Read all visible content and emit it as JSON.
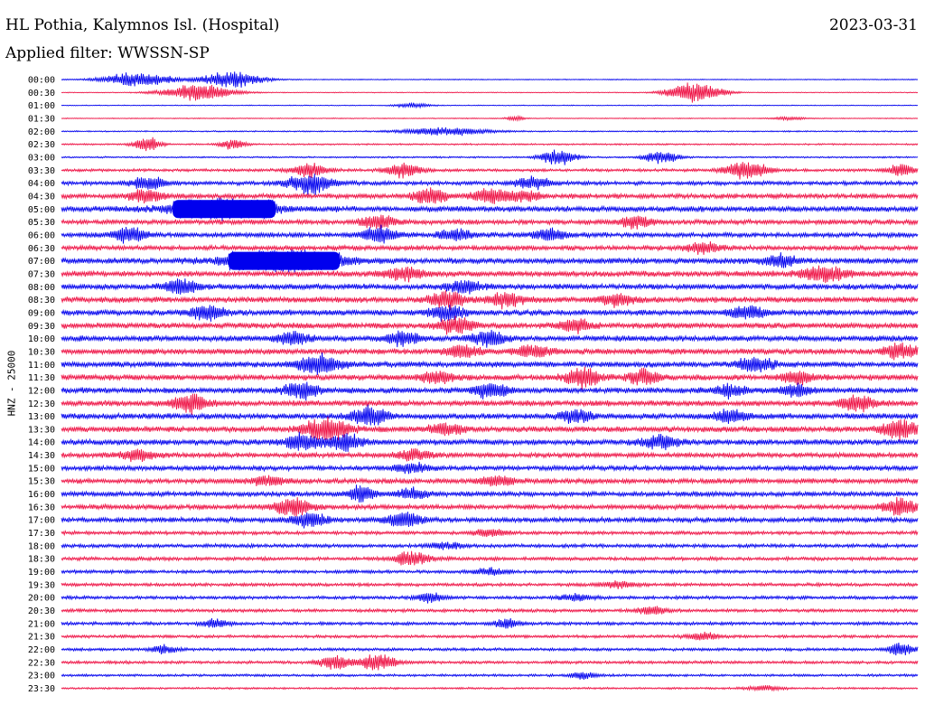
{
  "header": {
    "station": "HL Pothia, Kalymnos Isl. (Hospital)",
    "date": "2023-03-31",
    "filter": "Applied filter: WWSSN-SP"
  },
  "chart_data": {
    "type": "line",
    "title": "HL Pothia, Kalymnos Isl. (Hospital)",
    "subtitle": "Applied filter: WWSSN-SP",
    "ylabel": "HNZ - 25000",
    "xlabel": "",
    "colors": [
      "#0000ee",
      "#ee1144"
    ],
    "grid": false,
    "legend": "none",
    "rows": [
      {
        "label": "00:00",
        "level": 0.5,
        "events": [
          {
            "t": 0.09,
            "a": 9,
            "w": 0.04
          },
          {
            "t": 0.2,
            "a": 10,
            "w": 0.035
          }
        ]
      },
      {
        "label": "00:30",
        "level": 0.5,
        "events": [
          {
            "t": 0.16,
            "a": 10,
            "w": 0.04
          },
          {
            "t": 0.74,
            "a": 14,
            "w": 0.03
          }
        ]
      },
      {
        "label": "01:00",
        "level": 0.5,
        "events": [
          {
            "t": 0.41,
            "a": 3,
            "w": 0.02
          }
        ]
      },
      {
        "label": "01:30",
        "level": 0.5,
        "events": [
          {
            "t": 0.53,
            "a": 3,
            "w": 0.01
          },
          {
            "t": 0.85,
            "a": 2,
            "w": 0.02
          }
        ]
      },
      {
        "label": "02:00",
        "level": 0.8,
        "events": [
          {
            "t": 0.45,
            "a": 5,
            "w": 0.05
          }
        ]
      },
      {
        "label": "02:30",
        "level": 1,
        "events": [
          {
            "t": 0.1,
            "a": 10,
            "w": 0.015
          },
          {
            "t": 0.2,
            "a": 6,
            "w": 0.015
          }
        ]
      },
      {
        "label": "03:00",
        "level": 1,
        "events": [
          {
            "t": 0.58,
            "a": 10,
            "w": 0.02
          },
          {
            "t": 0.7,
            "a": 8,
            "w": 0.02
          }
        ]
      },
      {
        "label": "03:30",
        "level": 1.8,
        "events": [
          {
            "t": 0.29,
            "a": 9,
            "w": 0.02
          },
          {
            "t": 0.4,
            "a": 9,
            "w": 0.02
          },
          {
            "t": 0.8,
            "a": 10,
            "w": 0.025
          },
          {
            "t": 0.98,
            "a": 7,
            "w": 0.015
          }
        ]
      },
      {
        "label": "04:00",
        "level": 2.5,
        "events": [
          {
            "t": 0.1,
            "a": 8,
            "w": 0.02
          },
          {
            "t": 0.29,
            "a": 12,
            "w": 0.025
          },
          {
            "t": 0.55,
            "a": 8,
            "w": 0.02
          }
        ]
      },
      {
        "label": "04:30",
        "level": 3,
        "events": [
          {
            "t": 0.1,
            "a": 8,
            "w": 0.02
          },
          {
            "t": 0.43,
            "a": 9,
            "w": 0.02
          },
          {
            "t": 0.5,
            "a": 8,
            "w": 0.02
          },
          {
            "t": 0.54,
            "a": 7,
            "w": 0.02
          }
        ]
      },
      {
        "label": "05:00",
        "level": 3.5,
        "events": [
          {
            "t": 0.19,
            "a": 11,
            "w": 0.06,
            "sat": 1
          }
        ]
      },
      {
        "label": "05:30",
        "level": 3,
        "events": [
          {
            "t": 0.37,
            "a": 9,
            "w": 0.02
          },
          {
            "t": 0.67,
            "a": 7,
            "w": 0.02
          }
        ]
      },
      {
        "label": "06:00",
        "level": 3,
        "events": [
          {
            "t": 0.08,
            "a": 9,
            "w": 0.02
          },
          {
            "t": 0.37,
            "a": 10,
            "w": 0.02
          },
          {
            "t": 0.46,
            "a": 7,
            "w": 0.02
          },
          {
            "t": 0.57,
            "a": 7,
            "w": 0.02
          }
        ]
      },
      {
        "label": "06:30",
        "level": 3,
        "events": [
          {
            "t": 0.75,
            "a": 7,
            "w": 0.02
          }
        ]
      },
      {
        "label": "07:00",
        "level": 3.5,
        "events": [
          {
            "t": 0.26,
            "a": 12,
            "w": 0.065,
            "sat": 1
          },
          {
            "t": 0.84,
            "a": 8,
            "w": 0.02
          }
        ]
      },
      {
        "label": "07:30",
        "level": 3.5,
        "events": [
          {
            "t": 0.4,
            "a": 8,
            "w": 0.025
          },
          {
            "t": 0.89,
            "a": 10,
            "w": 0.025
          }
        ]
      },
      {
        "label": "08:00",
        "level": 3.5,
        "events": [
          {
            "t": 0.14,
            "a": 9,
            "w": 0.02
          },
          {
            "t": 0.47,
            "a": 8,
            "w": 0.02
          }
        ]
      },
      {
        "label": "08:30",
        "level": 3.5,
        "events": [
          {
            "t": 0.45,
            "a": 11,
            "w": 0.02
          },
          {
            "t": 0.52,
            "a": 9,
            "w": 0.02
          },
          {
            "t": 0.65,
            "a": 7,
            "w": 0.02
          }
        ]
      },
      {
        "label": "09:00",
        "level": 3.5,
        "events": [
          {
            "t": 0.17,
            "a": 9,
            "w": 0.02
          },
          {
            "t": 0.45,
            "a": 9,
            "w": 0.02
          },
          {
            "t": 0.8,
            "a": 8,
            "w": 0.02
          }
        ]
      },
      {
        "label": "09:30",
        "level": 3.5,
        "events": [
          {
            "t": 0.46,
            "a": 10,
            "w": 0.02
          },
          {
            "t": 0.6,
            "a": 7,
            "w": 0.02
          }
        ]
      },
      {
        "label": "10:00",
        "level": 3.5,
        "events": [
          {
            "t": 0.27,
            "a": 8,
            "w": 0.02
          },
          {
            "t": 0.4,
            "a": 8,
            "w": 0.02
          },
          {
            "t": 0.5,
            "a": 9,
            "w": 0.02
          }
        ]
      },
      {
        "label": "10:30",
        "level": 3.5,
        "events": [
          {
            "t": 0.47,
            "a": 8,
            "w": 0.02
          },
          {
            "t": 0.55,
            "a": 7,
            "w": 0.02
          },
          {
            "t": 0.98,
            "a": 9,
            "w": 0.02
          }
        ]
      },
      {
        "label": "11:00",
        "level": 3.5,
        "events": [
          {
            "t": 0.3,
            "a": 11,
            "w": 0.025
          },
          {
            "t": 0.81,
            "a": 9,
            "w": 0.02
          }
        ]
      },
      {
        "label": "11:30",
        "level": 3.5,
        "events": [
          {
            "t": 0.44,
            "a": 7,
            "w": 0.02
          },
          {
            "t": 0.61,
            "a": 12,
            "w": 0.02
          },
          {
            "t": 0.68,
            "a": 8,
            "w": 0.02
          },
          {
            "t": 0.86,
            "a": 8,
            "w": 0.02
          }
        ]
      },
      {
        "label": "12:00",
        "level": 3.5,
        "events": [
          {
            "t": 0.28,
            "a": 10,
            "w": 0.02
          },
          {
            "t": 0.5,
            "a": 9,
            "w": 0.02
          },
          {
            "t": 0.78,
            "a": 7,
            "w": 0.02
          },
          {
            "t": 0.86,
            "a": 7,
            "w": 0.02
          }
        ]
      },
      {
        "label": "12:30",
        "level": 3.5,
        "events": [
          {
            "t": 0.15,
            "a": 12,
            "w": 0.02
          },
          {
            "t": 0.93,
            "a": 10,
            "w": 0.02
          }
        ]
      },
      {
        "label": "13:00",
        "level": 3.5,
        "events": [
          {
            "t": 0.36,
            "a": 11,
            "w": 0.02
          },
          {
            "t": 0.6,
            "a": 7,
            "w": 0.02
          },
          {
            "t": 0.78,
            "a": 7,
            "w": 0.02
          }
        ]
      },
      {
        "label": "13:30",
        "level": 3.5,
        "events": [
          {
            "t": 0.3,
            "a": 9,
            "w": 0.02
          },
          {
            "t": 0.32,
            "a": 9,
            "w": 0.02
          },
          {
            "t": 0.45,
            "a": 7,
            "w": 0.02
          },
          {
            "t": 0.98,
            "a": 12,
            "w": 0.02
          }
        ]
      },
      {
        "label": "14:00",
        "level": 3.5,
        "events": [
          {
            "t": 0.28,
            "a": 10,
            "w": 0.02
          },
          {
            "t": 0.33,
            "a": 10,
            "w": 0.02
          },
          {
            "t": 0.7,
            "a": 8,
            "w": 0.02
          }
        ]
      },
      {
        "label": "14:30",
        "level": 3,
        "events": [
          {
            "t": 0.09,
            "a": 7,
            "w": 0.02
          },
          {
            "t": 0.41,
            "a": 7,
            "w": 0.02
          }
        ]
      },
      {
        "label": "15:00",
        "level": 3,
        "events": [
          {
            "t": 0.41,
            "a": 6,
            "w": 0.02
          }
        ]
      },
      {
        "label": "15:30",
        "level": 3,
        "events": [
          {
            "t": 0.24,
            "a": 6,
            "w": 0.02
          },
          {
            "t": 0.51,
            "a": 6,
            "w": 0.02
          }
        ]
      },
      {
        "label": "16:00",
        "level": 3,
        "events": [
          {
            "t": 0.35,
            "a": 10,
            "w": 0.015
          },
          {
            "t": 0.41,
            "a": 6,
            "w": 0.02
          }
        ]
      },
      {
        "label": "16:30",
        "level": 3,
        "events": [
          {
            "t": 0.27,
            "a": 11,
            "w": 0.02
          },
          {
            "t": 0.98,
            "a": 10,
            "w": 0.02
          }
        ]
      },
      {
        "label": "17:00",
        "level": 3,
        "events": [
          {
            "t": 0.29,
            "a": 9,
            "w": 0.02
          },
          {
            "t": 0.4,
            "a": 10,
            "w": 0.02
          }
        ]
      },
      {
        "label": "17:30",
        "level": 2.2,
        "events": [
          {
            "t": 0.5,
            "a": 4,
            "w": 0.02
          }
        ]
      },
      {
        "label": "18:00",
        "level": 2.2,
        "events": [
          {
            "t": 0.45,
            "a": 4,
            "w": 0.02
          }
        ]
      },
      {
        "label": "18:30",
        "level": 2.2,
        "events": [
          {
            "t": 0.41,
            "a": 9,
            "w": 0.02
          }
        ]
      },
      {
        "label": "19:00",
        "level": 2,
        "events": [
          {
            "t": 0.5,
            "a": 4,
            "w": 0.02
          }
        ]
      },
      {
        "label": "19:30",
        "level": 2,
        "events": [
          {
            "t": 0.65,
            "a": 4,
            "w": 0.02
          }
        ]
      },
      {
        "label": "20:00",
        "level": 2,
        "events": [
          {
            "t": 0.43,
            "a": 6,
            "w": 0.015
          },
          {
            "t": 0.6,
            "a": 4,
            "w": 0.02
          }
        ]
      },
      {
        "label": "20:30",
        "level": 2,
        "events": [
          {
            "t": 0.69,
            "a": 6,
            "w": 0.015
          }
        ]
      },
      {
        "label": "21:00",
        "level": 2,
        "events": [
          {
            "t": 0.18,
            "a": 5,
            "w": 0.015
          },
          {
            "t": 0.52,
            "a": 6,
            "w": 0.015
          }
        ]
      },
      {
        "label": "21:30",
        "level": 1.8,
        "events": [
          {
            "t": 0.75,
            "a": 4,
            "w": 0.02
          }
        ]
      },
      {
        "label": "22:00",
        "level": 1.8,
        "events": [
          {
            "t": 0.12,
            "a": 5,
            "w": 0.015
          },
          {
            "t": 0.98,
            "a": 8,
            "w": 0.015
          }
        ]
      },
      {
        "label": "22:30",
        "level": 1.8,
        "events": [
          {
            "t": 0.32,
            "a": 8,
            "w": 0.02
          },
          {
            "t": 0.37,
            "a": 10,
            "w": 0.02
          }
        ]
      },
      {
        "label": "23:00",
        "level": 1.5,
        "events": [
          {
            "t": 0.61,
            "a": 5,
            "w": 0.015
          }
        ]
      },
      {
        "label": "23:30",
        "level": 1.2,
        "events": [
          {
            "t": 0.82,
            "a": 3,
            "w": 0.02
          }
        ]
      }
    ]
  }
}
